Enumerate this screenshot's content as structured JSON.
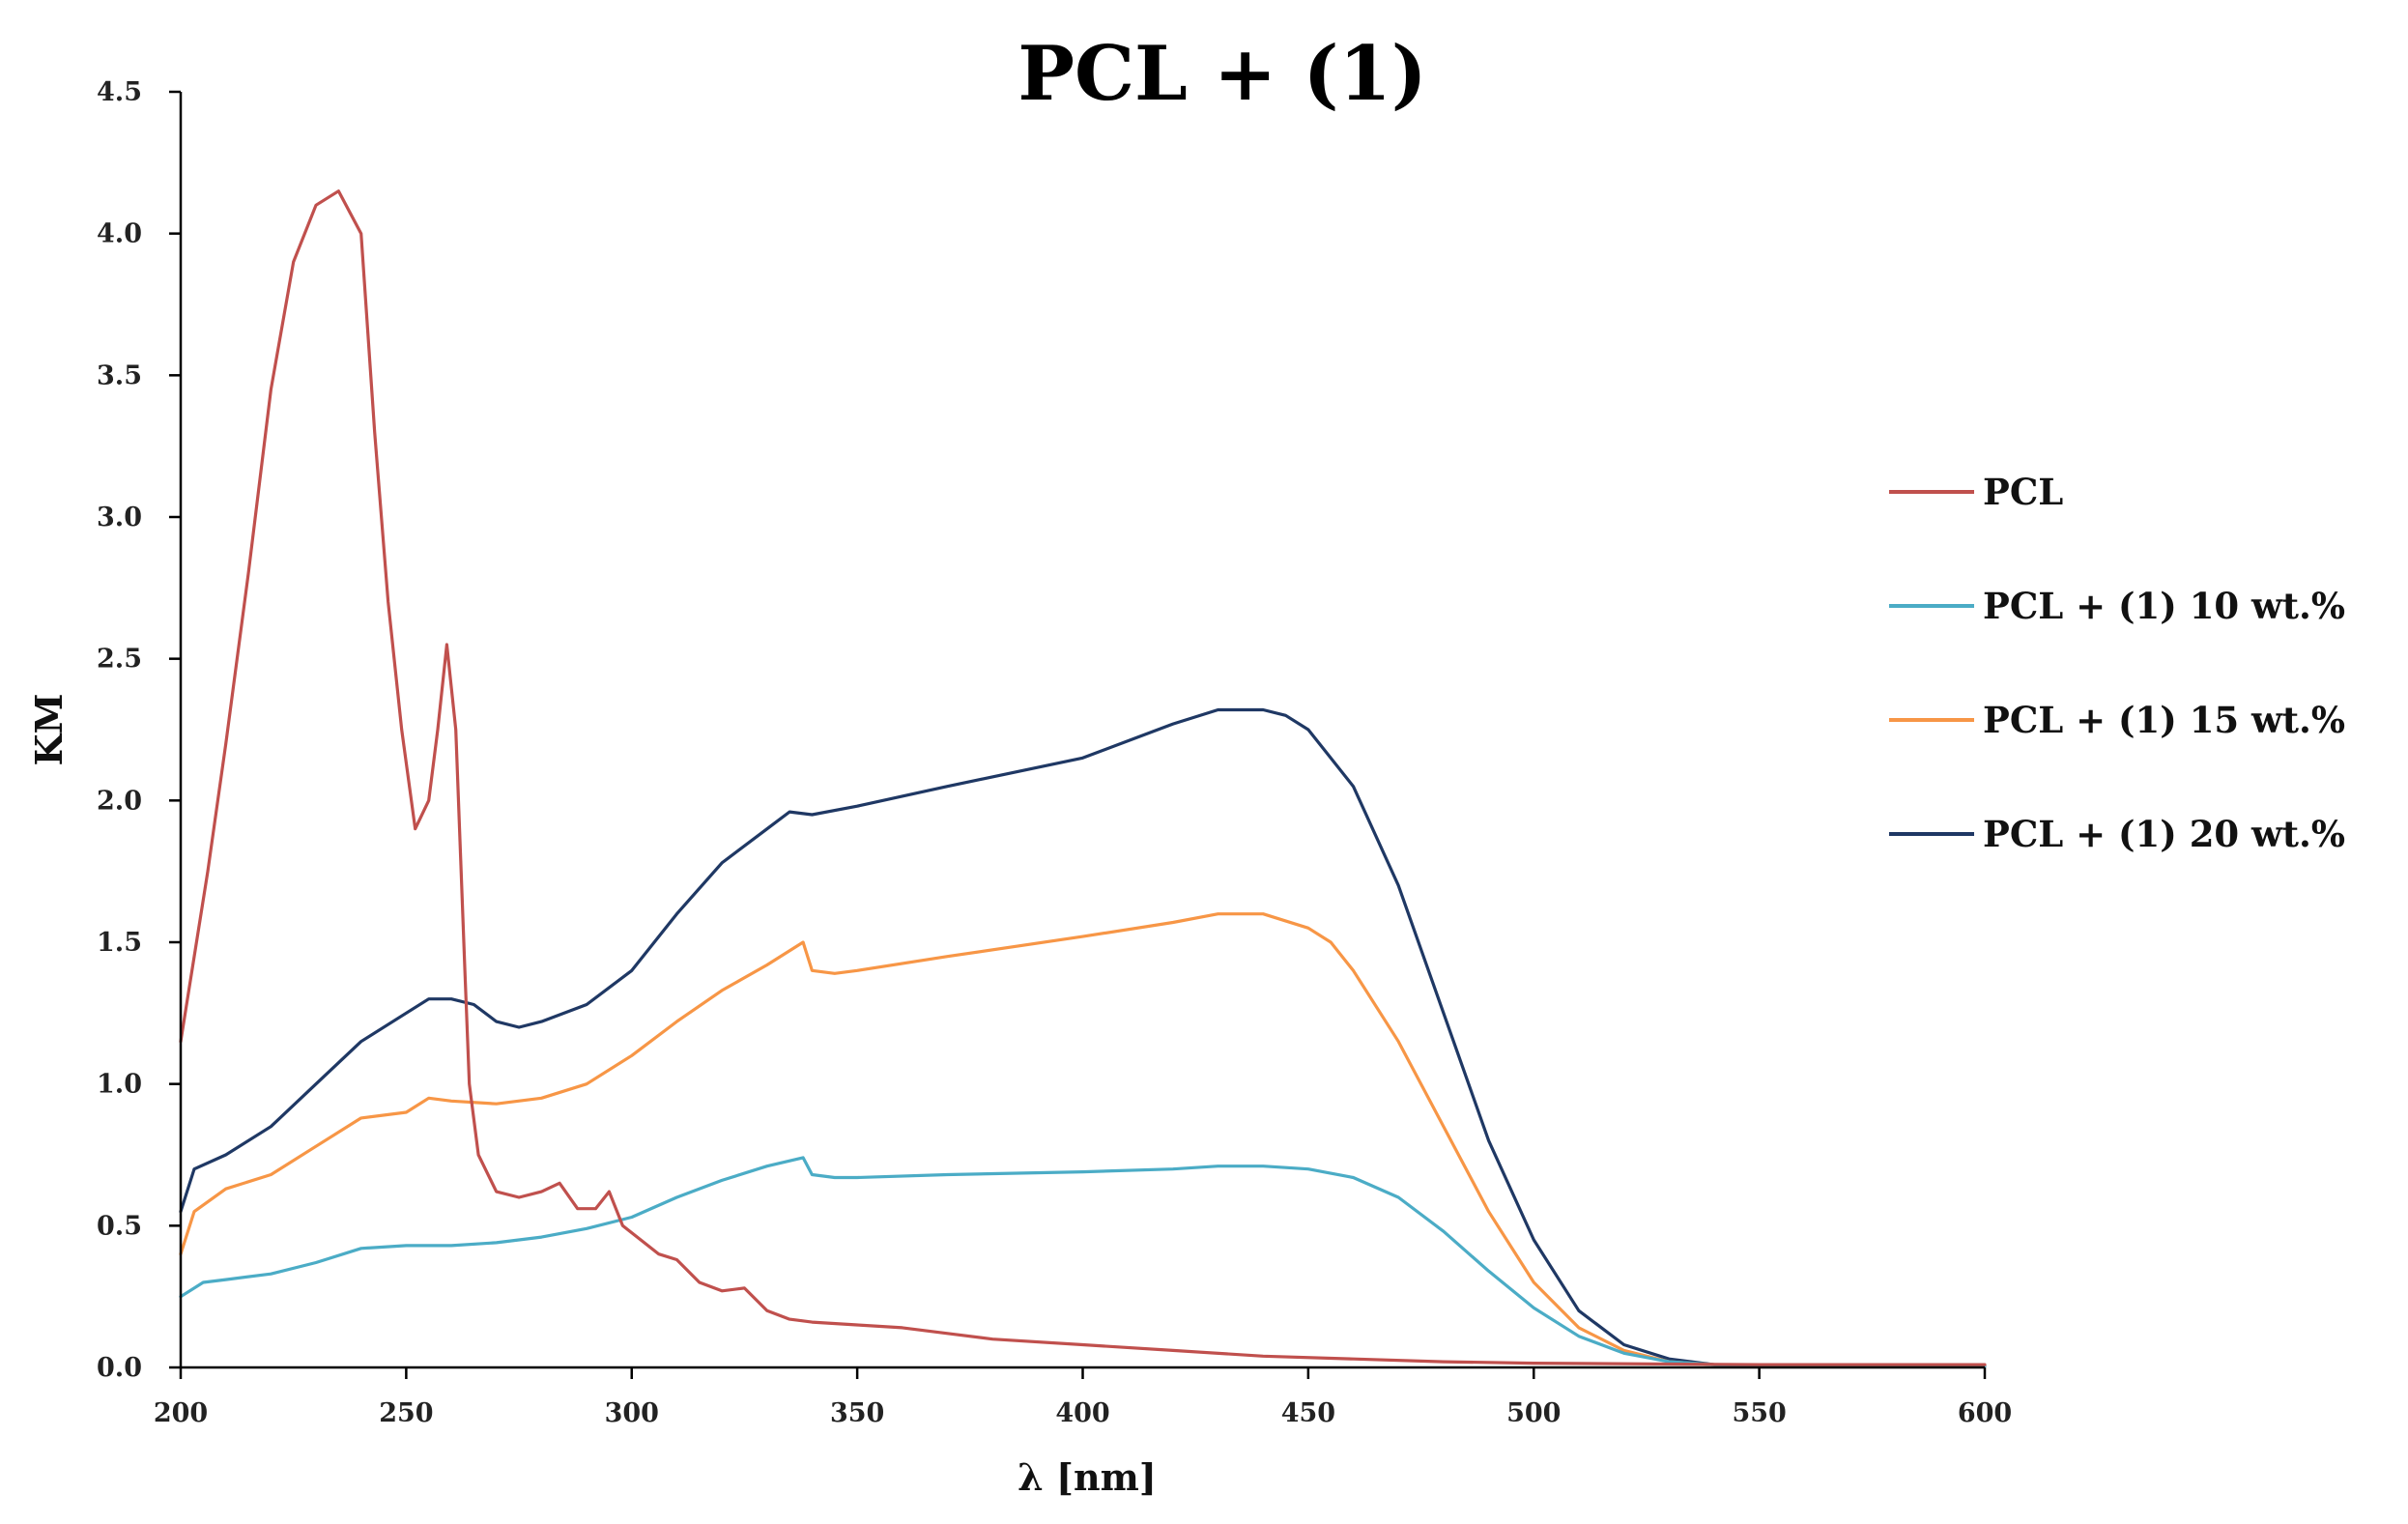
{
  "chart_data": {
    "type": "line",
    "title": "PCL + (1)",
    "xlabel": "λ [nm]",
    "ylabel": "KM",
    "xlim": [
      200,
      600
    ],
    "ylim": [
      0.0,
      4.5
    ],
    "xticks": [
      200,
      250,
      300,
      350,
      400,
      450,
      500,
      550,
      600
    ],
    "xtick_labels": [
      "200",
      "250",
      "300",
      "350",
      "400",
      "450",
      "500",
      "550",
      "600"
    ],
    "yticks": [
      0.0,
      0.5,
      1.0,
      1.5,
      2.0,
      2.5,
      3.0,
      3.5,
      4.0,
      4.5
    ],
    "ytick_labels": [
      "0.0",
      "0.5",
      "1.0",
      "1.5",
      "2.0",
      "2.5",
      "3.0",
      "3.5",
      "4.0",
      "4.5"
    ],
    "grid": false,
    "legend_position": "right",
    "series": [
      {
        "name": "PCL",
        "color": "#C0504D",
        "x": [
          200,
          203,
          206,
          210,
          215,
          220,
          225,
          230,
          235,
          240,
          243,
          246,
          249,
          252,
          255,
          257,
          259,
          261,
          263,
          264,
          266,
          270,
          275,
          280,
          284,
          288,
          292,
          295,
          298,
          302,
          306,
          310,
          315,
          320,
          325,
          330,
          335,
          340,
          350,
          360,
          370,
          380,
          400,
          420,
          440,
          460,
          480,
          500,
          550,
          600
        ],
        "values": [
          1.15,
          1.45,
          1.75,
          2.2,
          2.8,
          3.45,
          3.9,
          4.1,
          4.15,
          4.0,
          3.3,
          2.7,
          2.25,
          1.9,
          2.0,
          2.25,
          2.55,
          2.25,
          1.4,
          1.0,
          0.75,
          0.62,
          0.6,
          0.62,
          0.65,
          0.56,
          0.56,
          0.62,
          0.5,
          0.45,
          0.4,
          0.38,
          0.3,
          0.27,
          0.28,
          0.2,
          0.17,
          0.16,
          0.15,
          0.14,
          0.12,
          0.1,
          0.08,
          0.06,
          0.04,
          0.03,
          0.02,
          0.015,
          0.01,
          0.01
        ]
      },
      {
        "name": "PCL + (1) 10 wt.%",
        "color": "#4BACC6",
        "x": [
          200,
          205,
          210,
          220,
          230,
          240,
          250,
          260,
          270,
          280,
          290,
          300,
          310,
          320,
          330,
          338,
          340,
          345,
          350,
          370,
          400,
          420,
          430,
          440,
          450,
          460,
          470,
          480,
          490,
          500,
          510,
          520,
          530,
          540,
          550,
          570,
          600
        ],
        "values": [
          0.25,
          0.3,
          0.31,
          0.33,
          0.37,
          0.42,
          0.43,
          0.43,
          0.44,
          0.46,
          0.49,
          0.53,
          0.6,
          0.66,
          0.71,
          0.74,
          0.68,
          0.67,
          0.67,
          0.68,
          0.69,
          0.7,
          0.71,
          0.71,
          0.7,
          0.67,
          0.6,
          0.48,
          0.34,
          0.21,
          0.11,
          0.05,
          0.02,
          0.01,
          0.005,
          0.005,
          0.005
        ]
      },
      {
        "name": "PCL + (1) 15 wt.%",
        "color": "#F79646",
        "x": [
          200,
          203,
          210,
          220,
          230,
          240,
          250,
          255,
          260,
          270,
          280,
          290,
          300,
          310,
          320,
          330,
          338,
          340,
          345,
          350,
          370,
          400,
          420,
          430,
          440,
          450,
          455,
          460,
          470,
          480,
          490,
          500,
          510,
          520,
          530,
          540,
          550,
          570,
          600
        ],
        "values": [
          0.4,
          0.55,
          0.63,
          0.68,
          0.78,
          0.88,
          0.9,
          0.95,
          0.94,
          0.93,
          0.95,
          1.0,
          1.1,
          1.22,
          1.33,
          1.42,
          1.5,
          1.4,
          1.39,
          1.4,
          1.45,
          1.52,
          1.57,
          1.6,
          1.6,
          1.55,
          1.5,
          1.4,
          1.15,
          0.85,
          0.55,
          0.3,
          0.14,
          0.06,
          0.02,
          0.01,
          0.005,
          0.005,
          0.005
        ]
      },
      {
        "name": "PCL + (1) 20 wt.%",
        "color": "#1F3864",
        "x": [
          200,
          203,
          210,
          220,
          230,
          240,
          250,
          255,
          260,
          265,
          270,
          275,
          280,
          290,
          300,
          310,
          320,
          330,
          335,
          340,
          350,
          370,
          400,
          420,
          430,
          440,
          445,
          450,
          460,
          470,
          480,
          490,
          500,
          510,
          520,
          530,
          540,
          550,
          570,
          600
        ],
        "values": [
          0.55,
          0.7,
          0.75,
          0.85,
          1.0,
          1.15,
          1.25,
          1.3,
          1.3,
          1.28,
          1.22,
          1.2,
          1.22,
          1.28,
          1.4,
          1.6,
          1.78,
          1.9,
          1.96,
          1.95,
          1.98,
          2.05,
          2.15,
          2.27,
          2.32,
          2.32,
          2.3,
          2.25,
          2.05,
          1.7,
          1.25,
          0.8,
          0.45,
          0.2,
          0.08,
          0.03,
          0.01,
          0.005,
          0.005,
          0.005
        ]
      }
    ]
  }
}
